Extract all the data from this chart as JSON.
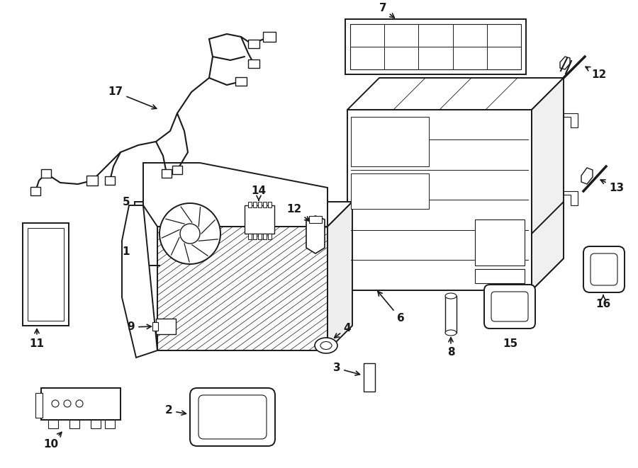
{
  "background_color": "#ffffff",
  "line_color": "#1a1a1a",
  "fig_width": 9.0,
  "fig_height": 6.61,
  "dpi": 100,
  "xlim": [
    0,
    900
  ],
  "ylim": [
    0,
    661
  ]
}
